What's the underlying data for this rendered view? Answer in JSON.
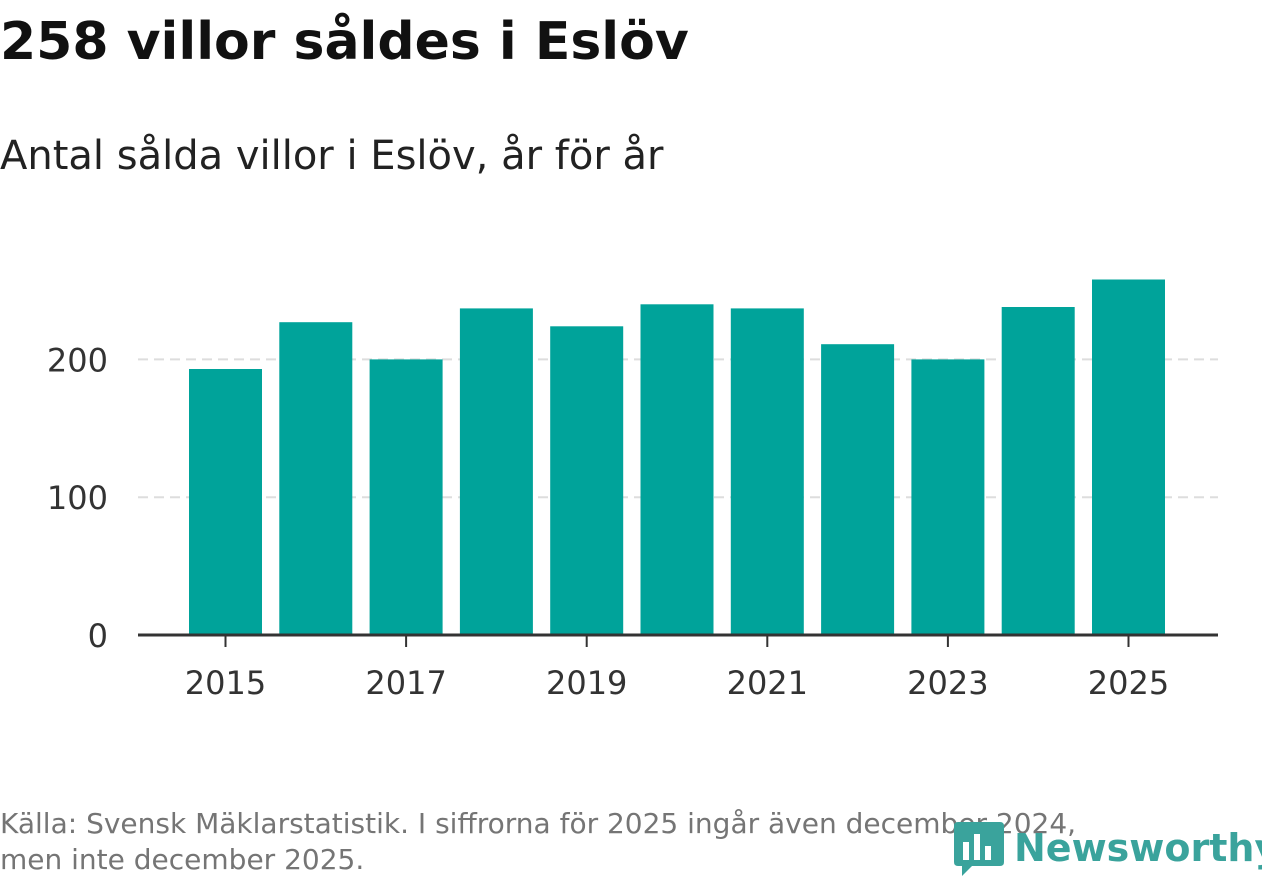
{
  "title": "258 villor såldes i Eslöv",
  "subtitle": "Antal sålda villor i Eslöv, år för år",
  "source": {
    "line1": "Källa: Svensk Mäklarstatistik. I siffrorna för 2025 ingår även december 2024,",
    "line2": "men inte december 2025."
  },
  "brand": {
    "name": "Newsworthy",
    "icon": "newsworthy-bar-chart-logo-icon",
    "color": "#3aa39c"
  },
  "colors": {
    "bar": "#00a39a",
    "grid": "#dddddd",
    "axis": "#333333",
    "tick_text": "#333333"
  },
  "chart_data": {
    "type": "bar",
    "title": "258 villor såldes i Eslöv",
    "subtitle": "Antal sålda villor i Eslöv, år för år",
    "xlabel": "",
    "ylabel": "",
    "categories": [
      "2015",
      "2016",
      "2017",
      "2018",
      "2019",
      "2020",
      "2021",
      "2022",
      "2023",
      "2024",
      "2025"
    ],
    "values": [
      193,
      227,
      200,
      237,
      224,
      240,
      237,
      211,
      200,
      238,
      258
    ],
    "x_tick_labels": [
      "2015",
      "2017",
      "2019",
      "2021",
      "2023",
      "2025"
    ],
    "y_ticks": [
      0,
      100,
      200
    ],
    "ylim": [
      0,
      270
    ],
    "grid": true
  }
}
